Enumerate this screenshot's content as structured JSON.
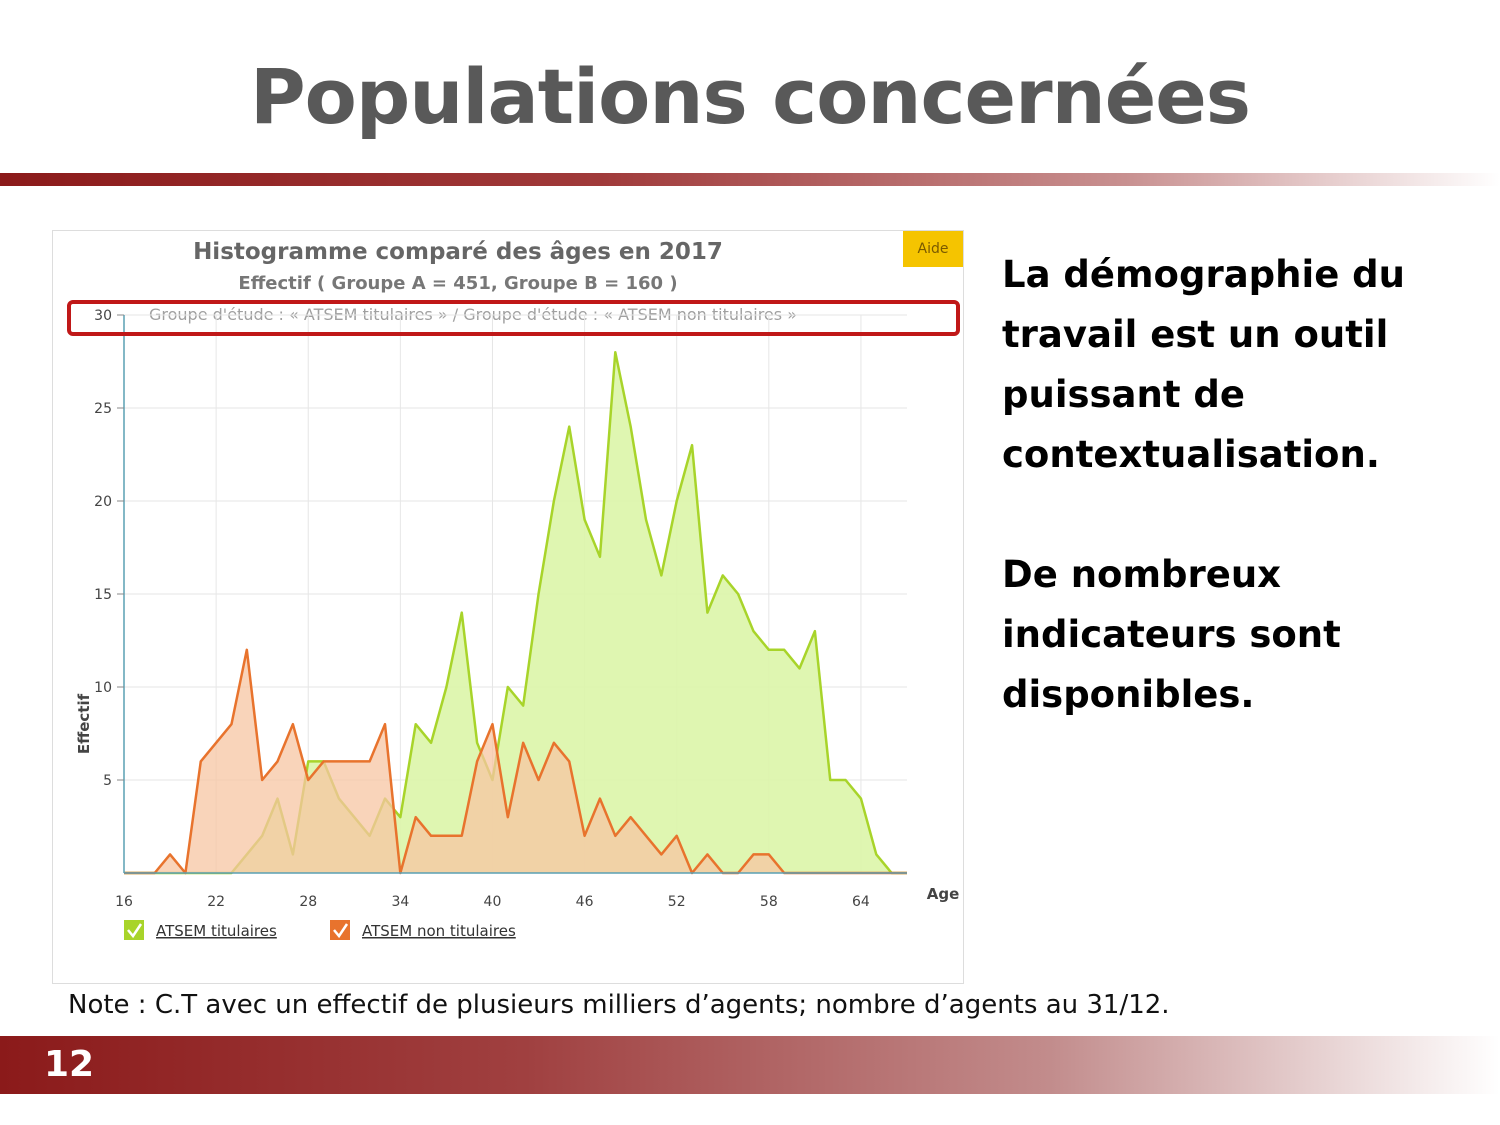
{
  "slide": {
    "title": "Populations concernées",
    "side_paragraphs": [
      "La démographie du travail est un outil puissant de contextualisation.",
      "De nombreux indicateurs sont disponibles."
    ],
    "note": "Note : C.T avec un effectif  de plusieurs milliers d’agents; nombre d’agents au 31/12.",
    "page_number": "12"
  },
  "chart_header": {
    "title": "Histogramme comparé des âges en 2017",
    "subtitle": "Effectif ( Groupe A = 451, Groupe B = 160 )",
    "group_line": "Groupe d'étude : « ATSEM titulaires » / Groupe d'étude : « ATSEM non titulaires »",
    "help_button": "Aide"
  },
  "colors": {
    "titulaires_fill": "#dcf5a8",
    "titulaires_line": "#a8d42a",
    "non_titulaires_fill": "#f7c5a3",
    "non_titulaires_line": "#e8732d",
    "axis": "#5aa0b4",
    "highlight": "#c01818"
  },
  "chart_data": {
    "type": "area",
    "title": "Histogramme comparé des âges en 2017",
    "subtitle": "Effectif ( Groupe A = 451, Groupe B = 160 )",
    "xlabel": "Age",
    "ylabel": "Effectif",
    "xlim": [
      16,
      67
    ],
    "ylim": [
      0,
      30
    ],
    "x_ticks": [
      16,
      22,
      28,
      34,
      40,
      46,
      52,
      58,
      64
    ],
    "y_ticks": [
      5,
      10,
      15,
      20,
      25,
      30
    ],
    "grid": true,
    "legend_position": "bottom-left",
    "x": [
      16,
      17,
      18,
      19,
      20,
      21,
      22,
      23,
      24,
      25,
      26,
      27,
      28,
      29,
      30,
      31,
      32,
      33,
      34,
      35,
      36,
      37,
      38,
      39,
      40,
      41,
      42,
      43,
      44,
      45,
      46,
      47,
      48,
      49,
      50,
      51,
      52,
      53,
      54,
      55,
      56,
      57,
      58,
      59,
      60,
      61,
      62,
      63,
      64,
      65,
      66,
      67
    ],
    "series": [
      {
        "name": "ATSEM titulaires",
        "values": [
          0,
          0,
          0,
          0,
          0,
          0,
          0,
          0,
          1,
          2,
          4,
          1,
          6,
          6,
          4,
          3,
          2,
          4,
          3,
          8,
          7,
          10,
          14,
          7,
          5,
          10,
          9,
          15,
          20,
          24,
          19,
          17,
          28,
          24,
          19,
          16,
          20,
          23,
          14,
          16,
          15,
          13,
          12,
          12,
          11,
          13,
          5,
          5,
          4,
          1,
          0,
          0
        ]
      },
      {
        "name": "ATSEM non titulaires",
        "values": [
          0,
          0,
          0,
          1,
          0,
          6,
          7,
          8,
          12,
          5,
          6,
          8,
          5,
          6,
          6,
          6,
          6,
          8,
          0,
          3,
          2,
          2,
          2,
          6,
          8,
          3,
          7,
          5,
          7,
          6,
          2,
          4,
          2,
          3,
          2,
          1,
          2,
          0,
          1,
          0,
          0,
          1,
          1,
          0,
          0,
          0,
          0,
          0,
          0,
          0,
          0,
          0
        ]
      }
    ]
  }
}
